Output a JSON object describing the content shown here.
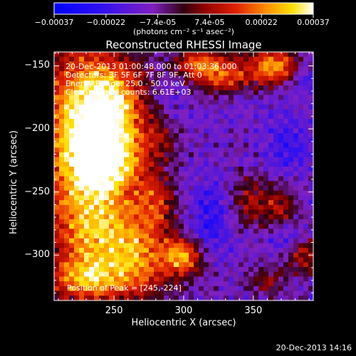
{
  "chart_data": {
    "type": "heatmap",
    "title": "Reconstructed RHESSI Image",
    "xlabel": "Heliocentric X (arcsec)",
    "ylabel": "Heliocentric Y (arcsec)",
    "xlim": [
      207,
      393
    ],
    "ylim": [
      -336,
      -139
    ],
    "x_ticks": [
      250,
      300,
      350
    ],
    "y_ticks": [
      -300,
      -250,
      -200,
      -150
    ],
    "colorbar": {
      "label": "(photons cm⁻² s⁻¹ asec⁻²)",
      "tick_labels": [
        "-0.00037",
        "-0.00022",
        "-7.4e-05",
        "7.4e-05",
        "0.00022",
        "0.00037"
      ],
      "range": [
        -0.00037,
        0.00037
      ]
    },
    "annotations": [
      "20-Dec-2013 01:00:48.000 to 01:03:36.000",
      "Detectors: 3F 5F 6F 7F 8F 9F, Att 0",
      "Energy Range: 25.0 - 50.0 keV",
      "Clean     Total counts: 6.61E+03"
    ],
    "peak_label": "Position of Peak = [245,-224]",
    "peak": [
      245,
      -224
    ],
    "sources": [
      {
        "x": 225,
        "y": -195,
        "amp": 0.00037,
        "sx": 22,
        "sy": 45
      },
      {
        "x": 245,
        "y": -224,
        "amp": 0.00037,
        "sx": 18,
        "sy": 18
      },
      {
        "x": 250,
        "y": -180,
        "amp": 0.0003,
        "sx": 18,
        "sy": 25
      },
      {
        "x": 235,
        "y": -280,
        "amp": 0.00033,
        "sx": 22,
        "sy": 30
      },
      {
        "x": 270,
        "y": -300,
        "amp": 0.00026,
        "sx": 18,
        "sy": 25
      },
      {
        "x": 300,
        "y": -302,
        "amp": 0.00032,
        "sx": 10,
        "sy": 10
      },
      {
        "x": 230,
        "y": -320,
        "amp": 0.00026,
        "sx": 20,
        "sy": 12
      },
      {
        "x": 330,
        "y": -158,
        "amp": 0.00026,
        "sx": 18,
        "sy": 12
      },
      {
        "x": 366,
        "y": -150,
        "amp": 0.00032,
        "sx": 12,
        "sy": 10
      },
      {
        "x": 310,
        "y": -148,
        "amp": 0.00022,
        "sx": 12,
        "sy": 8
      },
      {
        "x": 348,
        "y": -258,
        "amp": 0.00018,
        "sx": 12,
        "sy": 15
      },
      {
        "x": 385,
        "y": -300,
        "amp": 0.00022,
        "sx": 10,
        "sy": 10
      },
      {
        "x": 370,
        "y": -262,
        "amp": 0.00016,
        "sx": 8,
        "sy": 10
      },
      {
        "x": 280,
        "y": -255,
        "amp": 0.00018,
        "sx": 10,
        "sy": 15
      },
      {
        "x": 285,
        "y": -205,
        "amp": 0.00012,
        "sx": 10,
        "sy": 15
      },
      {
        "x": 360,
        "y": -320,
        "amp": 0.00014,
        "sx": 10,
        "sy": 8
      },
      {
        "x": 345,
        "y": -190,
        "amp": 0.0001,
        "sx": 10,
        "sy": 10
      },
      {
        "x": 320,
        "y": -270,
        "amp": -0.00015,
        "sx": 12,
        "sy": 22
      },
      {
        "x": 345,
        "y": -185,
        "amp": -0.00012,
        "sx": 15,
        "sy": 12
      },
      {
        "x": 375,
        "y": -215,
        "amp": -0.00012,
        "sx": 12,
        "sy": 15
      },
      {
        "x": 388,
        "y": -160,
        "amp": -0.0001,
        "sx": 8,
        "sy": 10
      },
      {
        "x": 290,
        "y": -180,
        "amp": -8e-05,
        "sx": 12,
        "sy": 15
      },
      {
        "x": 375,
        "y": -290,
        "amp": -0.0001,
        "sx": 12,
        "sy": 10
      }
    ]
  },
  "footer": {
    "timestamp": "20-Dec-2013 14:16"
  }
}
